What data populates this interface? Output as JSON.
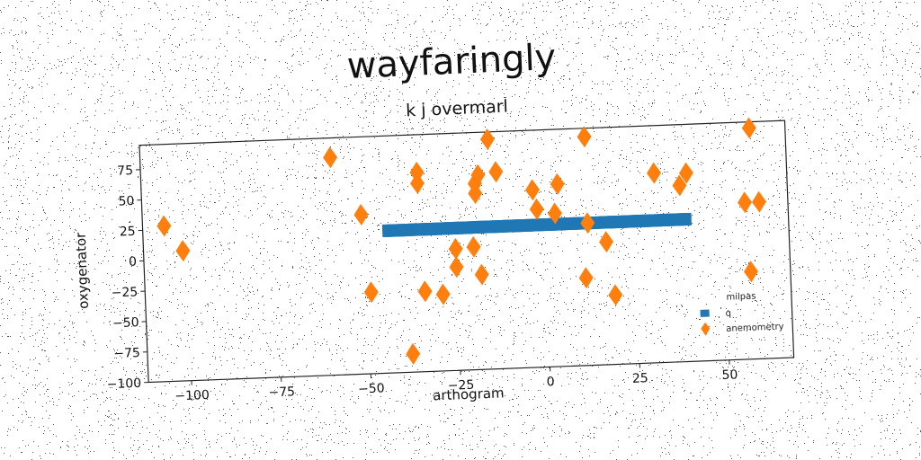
{
  "chart_data": {
    "type": "scatter",
    "title": "wayfaringly",
    "subtitle": "k j overmarl",
    "xlabel": "arthogram",
    "ylabel": "oxygenator",
    "xlim": [
      -112,
      68
    ],
    "ylim": [
      -100,
      95
    ],
    "x_ticks": [
      -100,
      -75,
      -50,
      -25,
      0,
      25,
      50
    ],
    "x_tick_labels": [
      "−100",
      "−75",
      "−50",
      "−25",
      "0",
      "25",
      "50"
    ],
    "y_ticks": [
      -100,
      -75,
      -50,
      -25,
      0,
      25,
      50,
      75
    ],
    "y_tick_labels": [
      "−100",
      "−75",
      "−50",
      "−25",
      "0",
      "25",
      "50",
      "75"
    ],
    "grid": false,
    "legend_title": "milpas",
    "legend_position": "lower-right",
    "series": [
      {
        "name": "q",
        "marker": "square",
        "color": "#1f77b4",
        "x_range": [
          -44,
          40
        ],
        "y": 17
      },
      {
        "name": "anemometry",
        "marker": "diamond",
        "color": "#ff7f0e",
        "points": [
          [
            -106,
            28
          ],
          [
            -101,
            7
          ],
          [
            -59,
            79
          ],
          [
            -51,
            31
          ],
          [
            -49,
            -33
          ],
          [
            -38,
            -85
          ],
          [
            -35,
            64
          ],
          [
            -35,
            55
          ],
          [
            -34,
            -34
          ],
          [
            -29,
            -37
          ],
          [
            -25,
            0
          ],
          [
            -25,
            -15
          ],
          [
            -19,
            45
          ],
          [
            -19,
            53
          ],
          [
            -18,
            60
          ],
          [
            -18,
            -22
          ],
          [
            -20,
            1
          ],
          [
            -15,
            89
          ],
          [
            -13,
            62
          ],
          [
            -3,
            46
          ],
          [
            -2,
            30
          ],
          [
            3,
            26
          ],
          [
            4,
            50
          ],
          [
            12,
            88
          ],
          [
            12,
            17
          ],
          [
            11,
            -28
          ],
          [
            17,
            1
          ],
          [
            19,
            -43
          ],
          [
            31,
            56
          ],
          [
            38,
            45
          ],
          [
            40,
            55
          ],
          [
            56,
            29
          ],
          [
            57,
            -28
          ],
          [
            58,
            90
          ],
          [
            60,
            29
          ]
        ]
      }
    ]
  }
}
